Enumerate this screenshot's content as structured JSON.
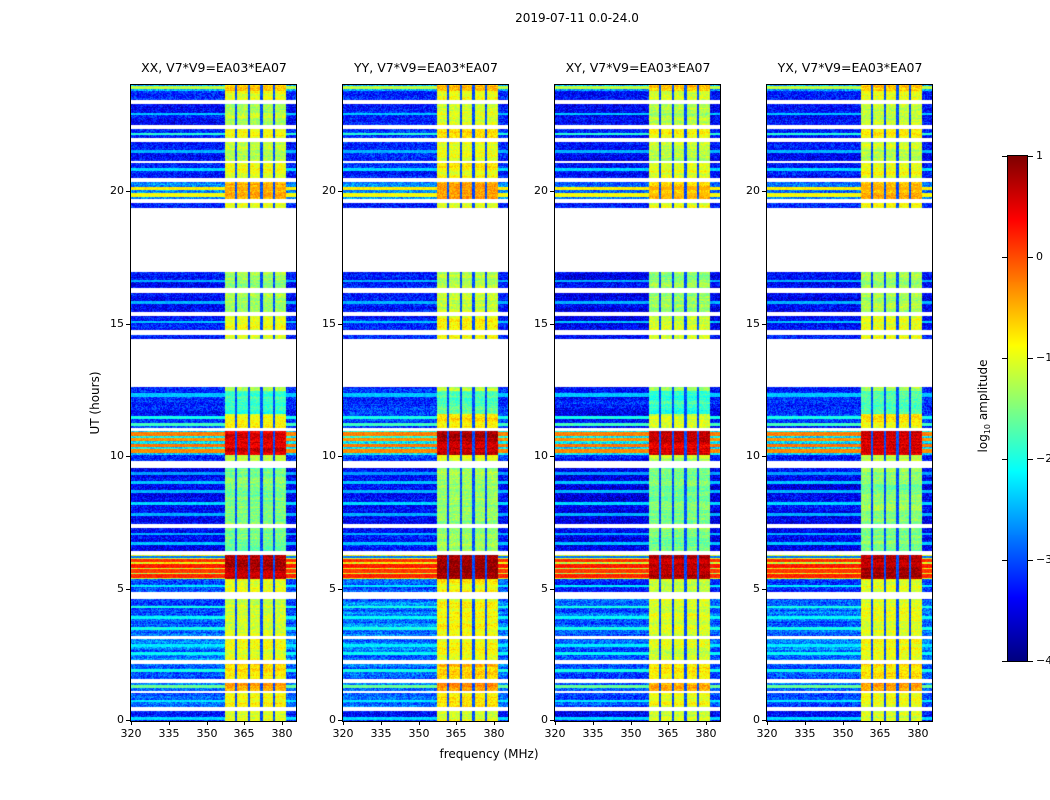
{
  "figure": {
    "title": "2019-07-11 0.0-24.0"
  },
  "panels": [
    {
      "id": "XX",
      "label": "XX, V7*V9=EA03*EA07"
    },
    {
      "id": "YY",
      "label": "YY, V7*V9=EA03*EA07"
    },
    {
      "id": "XY",
      "label": "XY, V7*V9=EA03*EA07"
    },
    {
      "id": "YX",
      "label": "YX, V7*V9=EA03*EA07"
    }
  ],
  "axes": {
    "xlabel": "frequency (MHz)",
    "ylabel": "UT (hours)",
    "x_ticks": [
      "320",
      "335",
      "350",
      "365",
      "380"
    ],
    "x_tick_values": [
      320,
      335,
      350,
      365,
      380
    ],
    "y_ticks": [
      "0",
      "5",
      "10",
      "15",
      "20"
    ],
    "y_tick_values": [
      0,
      5,
      10,
      15,
      20
    ],
    "x_range": [
      320,
      385.5
    ],
    "y_range": [
      0,
      24
    ]
  },
  "colorbar": {
    "label_log": "log",
    "label_sub": "10",
    "label_rest": " amplitude",
    "ticks": [
      "1",
      "0",
      "−1",
      "−2",
      "−3",
      "−4"
    ],
    "tick_values": [
      1,
      0,
      -1,
      -2,
      -3,
      -4
    ],
    "range": [
      -4,
      1
    ],
    "colormap": "jet"
  },
  "chart_data": {
    "type": "heatmap",
    "title": "2019-07-11 0.0-24.0",
    "xlabel": "frequency (MHz)",
    "ylabel": "UT (hours)",
    "x_range_mhz": [
      320,
      385.5
    ],
    "y_range_hours": [
      0,
      24
    ],
    "value_scale": "log10 amplitude",
    "value_range": [
      -4,
      1
    ],
    "colormap": "jet",
    "legend_position": "right-colorbar",
    "grid": false,
    "rfi_band": {
      "f0": 357.5,
      "f1": 381.5,
      "dividers": [
        361.8,
        366.8,
        371.8,
        376.8
      ]
    },
    "background_level": -3.5,
    "segments": [
      {
        "t0": 0.0,
        "t1": 0.38,
        "bg": -3.3,
        "stripe": 0.25,
        "rfi": -1.1,
        "lines": [
          {
            "t": 0.1,
            "a": -2.3,
            "w": 0.05
          }
        ]
      },
      {
        "t0": 0.38,
        "t1": 0.52,
        "gap": true
      },
      {
        "t0": 0.52,
        "t1": 1.05,
        "bg": -2.9,
        "stripe": 0.35,
        "rfi": -0.9,
        "lines": [
          {
            "t": 0.75,
            "a": -2.2,
            "w": 0.05
          }
        ]
      },
      {
        "t0": 1.05,
        "t1": 1.15,
        "gap": true
      },
      {
        "t0": 1.15,
        "t1": 1.45,
        "bg": -2.8,
        "stripe": 0.3,
        "rfi": -0.45,
        "lines": [
          {
            "t": 1.3,
            "a": -1.6,
            "w": 0.05
          }
        ]
      },
      {
        "t0": 1.45,
        "t1": 1.6,
        "gap": true
      },
      {
        "t0": 1.6,
        "t1": 2.15,
        "bg": -2.9,
        "stripe": 0.35,
        "rfi": -0.75,
        "lines": [
          {
            "t": 1.9,
            "a": -2.0,
            "w": 0.05
          }
        ]
      },
      {
        "t0": 2.15,
        "t1": 2.3,
        "gap": true
      },
      {
        "t0": 2.3,
        "t1": 3.1,
        "bg": -2.8,
        "stripe": 0.45,
        "rfi": -1.0,
        "lines": [
          {
            "t": 2.55,
            "a": -2.1,
            "w": 0.06
          },
          {
            "t": 2.85,
            "a": -2.2,
            "w": 0.05
          }
        ]
      },
      {
        "t0": 3.1,
        "t1": 3.2,
        "gap": true
      },
      {
        "t0": 3.2,
        "t1": 4.6,
        "bg": -2.85,
        "stripe": 0.5,
        "rfi": -1.05,
        "lines": [
          {
            "t": 3.5,
            "a": -2.0,
            "w": 0.05
          },
          {
            "t": 3.9,
            "a": -2.1,
            "w": 0.06
          },
          {
            "t": 4.3,
            "a": -2.0,
            "w": 0.05
          }
        ]
      },
      {
        "t0": 4.6,
        "t1": 4.85,
        "gap": true
      },
      {
        "t0": 4.85,
        "t1": 5.35,
        "bg": -3.0,
        "stripe": 0.35,
        "rfi": -1.0,
        "lines": [
          {
            "t": 5.1,
            "a": -2.2,
            "w": 0.05
          }
        ]
      },
      {
        "t0": 5.35,
        "t1": 6.25,
        "bg": -1.0,
        "stripe": 0.3,
        "rfi": 0.75,
        "lines": [
          {
            "t": 5.48,
            "a": 0.2,
            "w": 0.07
          },
          {
            "t": 5.66,
            "a": 0.1,
            "w": 0.06
          },
          {
            "t": 5.85,
            "a": 0.25,
            "w": 0.08
          },
          {
            "t": 6.05,
            "a": 0.15,
            "w": 0.06
          },
          {
            "t": 6.18,
            "a": -2.8,
            "w": 0.04
          }
        ]
      },
      {
        "t0": 6.25,
        "t1": 6.4,
        "gap": true
      },
      {
        "t0": 6.4,
        "t1": 7.3,
        "bg": -3.35,
        "stripe": 0.25,
        "rfi": -1.5,
        "lines": [
          {
            "t": 6.7,
            "a": -2.4,
            "w": 0.05
          },
          {
            "t": 7.05,
            "a": -2.5,
            "w": 0.05
          }
        ]
      },
      {
        "t0": 7.3,
        "t1": 7.45,
        "gap": true
      },
      {
        "t0": 7.45,
        "t1": 9.55,
        "bg": -3.4,
        "stripe": 0.25,
        "rfi": -1.5,
        "lines": [
          {
            "t": 7.8,
            "a": -2.5,
            "w": 0.05
          },
          {
            "t": 8.2,
            "a": -2.3,
            "w": 0.06
          },
          {
            "t": 8.65,
            "a": -2.5,
            "w": 0.05
          },
          {
            "t": 9.0,
            "a": -2.4,
            "w": 0.05
          },
          {
            "t": 9.35,
            "a": -2.6,
            "w": 0.05
          }
        ]
      },
      {
        "t0": 9.55,
        "t1": 9.8,
        "gap": true
      },
      {
        "t0": 9.8,
        "t1": 10.05,
        "bg": -3.2,
        "stripe": 0.25,
        "rfi": -1.2
      },
      {
        "t0": 10.05,
        "t1": 10.95,
        "bg": -2.2,
        "stripe": 0.35,
        "rfi": 0.6,
        "lines": [
          {
            "t": 10.18,
            "a": -0.3,
            "w": 0.07
          },
          {
            "t": 10.4,
            "a": -0.2,
            "w": 0.07
          },
          {
            "t": 10.62,
            "a": -0.35,
            "w": 0.06
          },
          {
            "t": 10.82,
            "a": -0.25,
            "w": 0.07
          }
        ]
      },
      {
        "t0": 10.95,
        "t1": 11.05,
        "gap": true
      },
      {
        "t0": 11.05,
        "t1": 11.6,
        "bg": -3.1,
        "stripe": 0.3,
        "rfi": -0.9,
        "lines": [
          {
            "t": 11.2,
            "a": -1.8,
            "w": 0.05
          },
          {
            "t": 11.45,
            "a": -2.0,
            "w": 0.05
          }
        ]
      },
      {
        "t0": 11.6,
        "t1": 12.45,
        "bg": -3.15,
        "stripe": 0.3,
        "rfi": -1.8,
        "lines": [
          {
            "t": 12.3,
            "a": -2.4,
            "w": 0.06
          }
        ]
      },
      {
        "t0": 12.45,
        "t1": 12.6,
        "bg": -3.2,
        "stripe": 0.25,
        "rfi": -1.3
      },
      {
        "t0": 12.6,
        "t1": 14.4,
        "gap": true
      },
      {
        "t0": 14.4,
        "t1": 14.55,
        "bg": -3.2,
        "stripe": 0.25,
        "rfi": -1.0
      },
      {
        "t0": 14.55,
        "t1": 14.75,
        "gap": true
      },
      {
        "t0": 14.75,
        "t1": 15.3,
        "bg": -3.3,
        "stripe": 0.25,
        "rfi": -1.0,
        "lines": [
          {
            "t": 15.05,
            "a": -2.4,
            "w": 0.05
          }
        ]
      },
      {
        "t0": 15.3,
        "t1": 15.45,
        "gap": true
      },
      {
        "t0": 15.45,
        "t1": 16.15,
        "bg": -3.35,
        "stripe": 0.25,
        "rfi": -1.3,
        "lines": [
          {
            "t": 15.8,
            "a": -2.5,
            "w": 0.05
          }
        ]
      },
      {
        "t0": 16.15,
        "t1": 16.35,
        "gap": true
      },
      {
        "t0": 16.35,
        "t1": 16.95,
        "bg": -3.35,
        "stripe": 0.25,
        "rfi": -1.4,
        "lines": [
          {
            "t": 16.6,
            "a": -2.5,
            "w": 0.05
          }
        ]
      },
      {
        "t0": 16.95,
        "t1": 19.35,
        "gap": true
      },
      {
        "t0": 19.35,
        "t1": 19.55,
        "bg": -3.2,
        "stripe": 0.25,
        "rfi": -1.0
      },
      {
        "t0": 19.55,
        "t1": 19.7,
        "gap": true
      },
      {
        "t0": 19.7,
        "t1": 20.35,
        "bg": -2.7,
        "stripe": 0.3,
        "rfi": -0.5,
        "lines": [
          {
            "t": 19.85,
            "a": -0.9,
            "w": 0.06
          },
          {
            "t": 20.1,
            "a": -0.8,
            "w": 0.06
          }
        ]
      },
      {
        "t0": 20.35,
        "t1": 20.5,
        "gap": true
      },
      {
        "t0": 20.5,
        "t1": 21.05,
        "bg": -3.25,
        "stripe": 0.25,
        "rfi": -1.0,
        "lines": [
          {
            "t": 20.8,
            "a": -2.3,
            "w": 0.05
          }
        ]
      },
      {
        "t0": 21.05,
        "t1": 21.15,
        "gap": true
      },
      {
        "t0": 21.15,
        "t1": 21.85,
        "bg": -3.3,
        "stripe": 0.25,
        "rfi": -1.2,
        "lines": [
          {
            "t": 21.5,
            "a": -2.5,
            "w": 0.05
          }
        ]
      },
      {
        "t0": 21.85,
        "t1": 22.0,
        "gap": true
      },
      {
        "t0": 22.0,
        "t1": 22.35,
        "bg": -3.2,
        "stripe": 0.25,
        "rfi": -0.9,
        "lines": [
          {
            "t": 22.15,
            "a": -1.9,
            "w": 0.05
          }
        ]
      },
      {
        "t0": 22.35,
        "t1": 22.5,
        "gap": true
      },
      {
        "t0": 22.5,
        "t1": 23.3,
        "bg": -3.3,
        "stripe": 0.25,
        "rfi": -1.2,
        "lines": [
          {
            "t": 22.9,
            "a": -2.4,
            "w": 0.05
          }
        ]
      },
      {
        "t0": 23.3,
        "t1": 23.45,
        "gap": true
      },
      {
        "t0": 23.45,
        "t1": 23.78,
        "bg": -3.2,
        "stripe": 0.25,
        "rfi": -1.0
      },
      {
        "t0": 23.78,
        "t1": 24.0,
        "bg": -2.5,
        "stripe": 0.3,
        "rfi": -0.6,
        "lines": [
          {
            "t": 23.9,
            "a": -1.2,
            "w": 0.06
          }
        ]
      }
    ],
    "panel_variation": [
      {
        "seed": 101,
        "bg_gain": 0.0,
        "rfi_gain": 0.0
      },
      {
        "seed": 202,
        "bg_gain": 0.05,
        "rfi_gain": 0.12
      },
      {
        "seed": 303,
        "bg_gain": -0.12,
        "rfi_gain": -0.06
      },
      {
        "seed": 404,
        "bg_gain": -0.05,
        "rfi_gain": 0.02
      }
    ]
  }
}
